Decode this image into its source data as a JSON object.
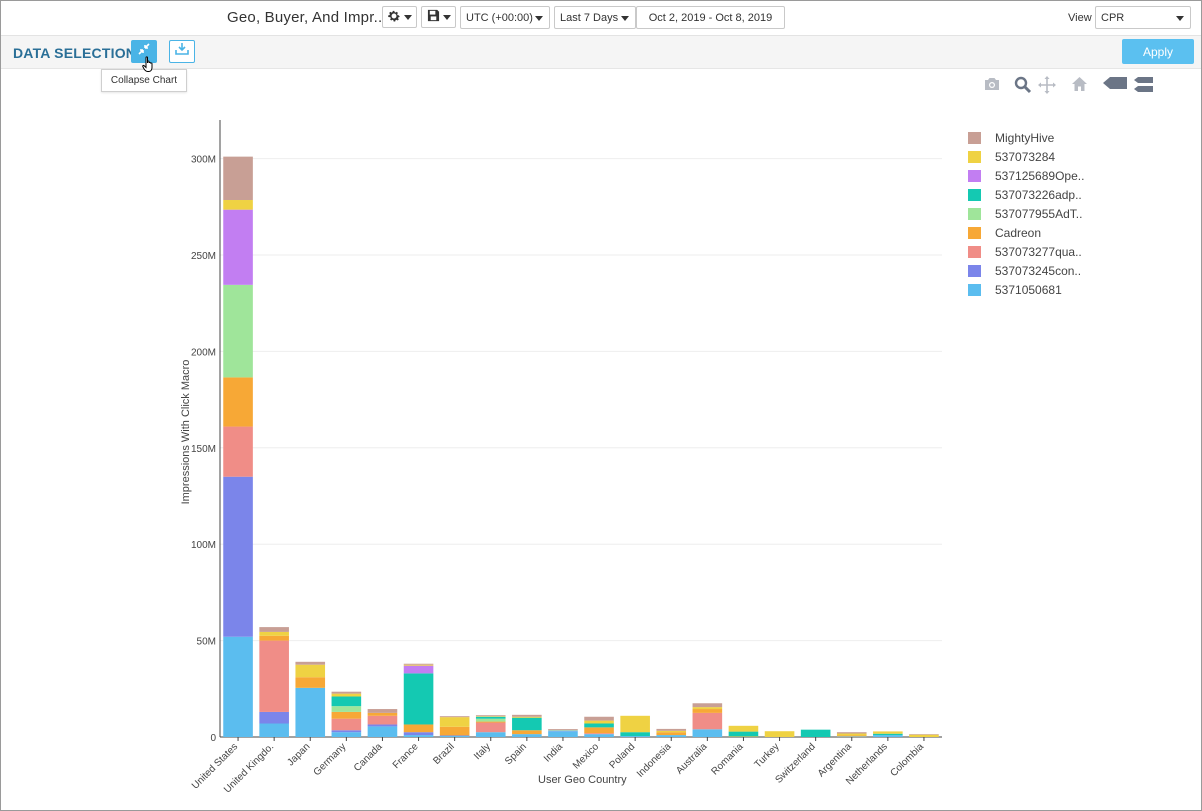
{
  "toolbar": {
    "report_title": "Geo, Buyer, And Impr...",
    "timezone": "UTC (+00:00)",
    "date_preset": "Last 7 Days",
    "date_range": "Oct 2, 2019 - Oct 8, 2019",
    "view_label": "View",
    "view_value": "CPR"
  },
  "selection_bar": {
    "title": "DATA SELECTION",
    "apply_label": "Apply",
    "tooltip": "Collapse Chart"
  },
  "icons": {
    "settings": "gear-icon",
    "save": "save-icon",
    "collapse": "collapse-icon",
    "download": "download-icon",
    "camera": "camera-icon",
    "zoom": "zoom-icon",
    "pan": "pan-icon",
    "home": "home-icon",
    "hover_closest": "hover-closest-icon",
    "hover_compare": "hover-compare-icon"
  },
  "chart_data": {
    "type": "bar",
    "stacked": true,
    "xlabel": "User Geo Country",
    "ylabel": "Impressions With Click Macro",
    "ylim": [
      0,
      320000000
    ],
    "yticks": [
      0,
      50000000,
      100000000,
      150000000,
      200000000,
      250000000,
      300000000
    ],
    "ytick_labels": [
      "0",
      "50M",
      "100M",
      "150M",
      "200M",
      "250M",
      "300M"
    ],
    "grid": true,
    "legend_position": "right",
    "categories": [
      "United States",
      "United Kingdo.",
      "Japan",
      "Germany",
      "Canada",
      "France",
      "Brazil",
      "Italy",
      "Spain",
      "India",
      "Mexico",
      "Poland",
      "Indonesia",
      "Australia",
      "Romania",
      "Turkey",
      "Switzerland",
      "Argentina",
      "Netherlands",
      "Colombia"
    ],
    "series": [
      {
        "name": "5371050681",
        "color": "#5bbdef",
        "values": [
          52000000,
          7000000,
          25500000,
          2500000,
          5500000,
          1000000,
          500000,
          2500000,
          1500000,
          3000000,
          1500000,
          500000,
          1000000,
          4000000,
          0,
          0,
          0,
          300000,
          1000000,
          0
        ]
      },
      {
        "name": "537073245con..",
        "color": "#7b85ea",
        "values": [
          83000000,
          6000000,
          0,
          1000000,
          1000000,
          1500000,
          300000,
          0,
          0,
          300000,
          0,
          0,
          0,
          0,
          0,
          0,
          0,
          0,
          0,
          0
        ]
      },
      {
        "name": "537073277qua..",
        "color": "#f08d87",
        "values": [
          26000000,
          37000000,
          0,
          6000000,
          4500000,
          0,
          0,
          5000000,
          0,
          0,
          500000,
          0,
          0,
          8500000,
          0,
          0,
          0,
          0,
          0,
          0
        ]
      },
      {
        "name": "Cadreon",
        "color": "#f7a836",
        "values": [
          25500000,
          2500000,
          5500000,
          3500000,
          1500000,
          4000000,
          4500000,
          500000,
          2000000,
          0,
          3000000,
          0,
          1500000,
          2000000,
          300000,
          0,
          0,
          500000,
          0,
          0
        ]
      },
      {
        "name": "537077955AdT..",
        "color": "#9fe59a",
        "values": [
          48000000,
          0,
          0,
          3000000,
          0,
          0,
          0,
          1500000,
          0,
          300000,
          0,
          0,
          0,
          0,
          0,
          0,
          0,
          0,
          0,
          0
        ]
      },
      {
        "name": "537073226adp..",
        "color": "#14c9b2",
        "values": [
          0,
          0,
          0,
          5000000,
          0,
          26500000,
          0,
          1000000,
          6500000,
          0,
          2000000,
          2000000,
          0,
          0,
          2500000,
          0,
          3800000,
          0,
          700000,
          0
        ]
      },
      {
        "name": "537125689Ope..",
        "color": "#c27ef2",
        "values": [
          39000000,
          0,
          0,
          0,
          0,
          4000000,
          0,
          0,
          0,
          0,
          0,
          0,
          0,
          0,
          0,
          0,
          0,
          0,
          0,
          0
        ]
      },
      {
        "name": "537073284",
        "color": "#efd243",
        "values": [
          5000000,
          2000000,
          6500000,
          1500000,
          0,
          500000,
          5000000,
          300000,
          500000,
          0,
          1500000,
          8500000,
          700000,
          1000000,
          3000000,
          3000000,
          0,
          1000000,
          1200000,
          1200000
        ]
      },
      {
        "name": "MightyHive",
        "color": "#c89f95",
        "values": [
          22500000,
          2500000,
          1500000,
          1000000,
          2000000,
          500000,
          500000,
          500000,
          1000000,
          500000,
          2000000,
          0,
          1000000,
          2000000,
          0,
          0,
          0,
          700000,
          0,
          300000
        ]
      }
    ]
  }
}
